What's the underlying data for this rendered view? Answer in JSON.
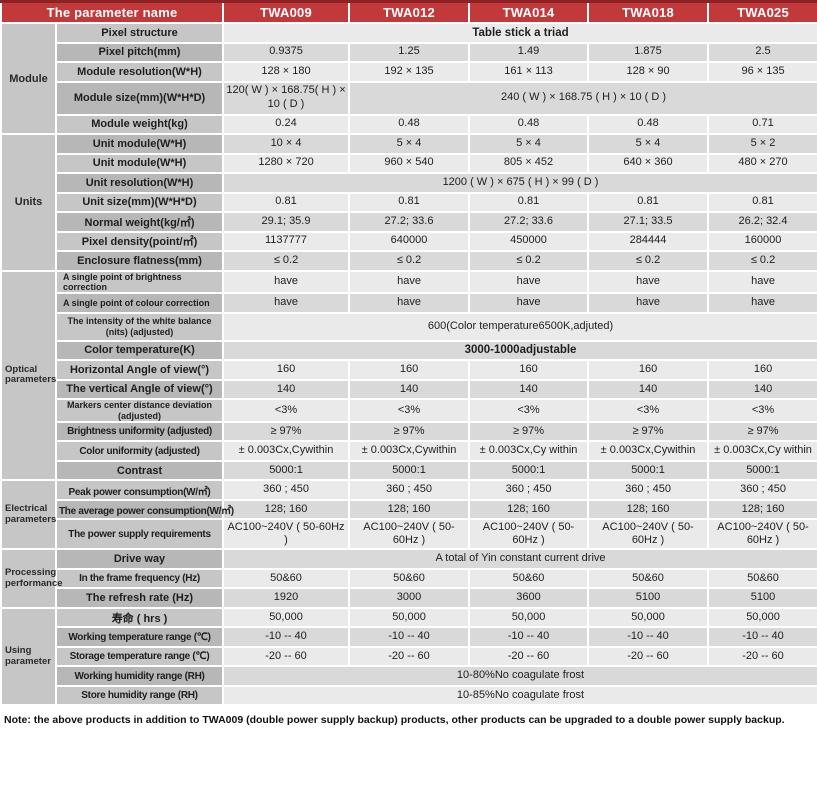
{
  "colors": {
    "header_red": "#c2393c",
    "header_red_dark": "#8d2225"
  },
  "header": {
    "param_col": "The parameter name",
    "models": [
      "TWA009",
      "TWA012",
      "TWA014",
      "TWA018",
      "TWA025"
    ]
  },
  "groups": [
    {
      "label": "Module",
      "rows": 5
    },
    {
      "label": "Units",
      "rows": 7
    },
    {
      "label": "Optical parameters",
      "rows": 10
    },
    {
      "label": "Electrical parameters",
      "rows": 3
    },
    {
      "label": "Processing performance",
      "rows": 3
    },
    {
      "label": "Using parameter",
      "rows": 5
    }
  ],
  "rows": [
    {
      "label": "Pixel structure",
      "bold": true,
      "cells": [
        {
          "text": "Table stick a triad",
          "colspan": 5
        }
      ]
    },
    {
      "label": "Pixel pitch(mm)",
      "cells": [
        {
          "text": "0.9375"
        },
        {
          "text": "1.25"
        },
        {
          "text": "1.49"
        },
        {
          "text": "1.875"
        },
        {
          "text": "2.5"
        }
      ]
    },
    {
      "label": "Module resolution(W*H)",
      "cells": [
        {
          "text": "128 × 180"
        },
        {
          "text": "192 × 135"
        },
        {
          "text": "161 × 113"
        },
        {
          "text": "128 × 90"
        },
        {
          "text": "96 × 135"
        }
      ]
    },
    {
      "label": "Module size(mm)(W*H*D)",
      "h": "h35",
      "cells": [
        {
          "text": "120( W ) × 168.75( H ) × 10 ( D )"
        },
        {
          "text": "240 ( W ) × 168.75 ( H ) × 10 ( D )",
          "colspan": 4
        }
      ]
    },
    {
      "label": "Module weight(kg)",
      "cells": [
        {
          "text": "0.24"
        },
        {
          "text": "0.48"
        },
        {
          "text": "0.48"
        },
        {
          "text": "0.48"
        },
        {
          "text": "0.71"
        }
      ]
    },
    {
      "label": "Unit module(W*H)",
      "cells": [
        {
          "text": "10 × 4"
        },
        {
          "text": "5 × 4"
        },
        {
          "text": "5 × 4"
        },
        {
          "text": "5 × 4"
        },
        {
          "text": "5 × 2"
        }
      ]
    },
    {
      "label": "Unit module(W*H)",
      "cells": [
        {
          "text": "1280 × 720"
        },
        {
          "text": "960 × 540"
        },
        {
          "text": "805 × 452"
        },
        {
          "text": "640 × 360"
        },
        {
          "text": "480 × 270"
        }
      ]
    },
    {
      "label": "Unit resolution(W*H)",
      "cells": [
        {
          "text": "1200 ( W )  × 675 ( H )  × 99 ( D )",
          "colspan": 5
        }
      ]
    },
    {
      "label": "Unit size(mm)(W*H*D)",
      "cells": [
        {
          "text": "0.81"
        },
        {
          "text": "0.81"
        },
        {
          "text": "0.81"
        },
        {
          "text": "0.81"
        },
        {
          "text": "0.81"
        }
      ]
    },
    {
      "label": "Normal weight(kg/㎡)",
      "cells": [
        {
          "text": "29.1; 35.9"
        },
        {
          "text": "27.2; 33.6"
        },
        {
          "text": "27.2; 33.6"
        },
        {
          "text": "27.1; 33.5"
        },
        {
          "text": "26.2; 32.4"
        }
      ]
    },
    {
      "label": "Pixel density(point/㎡)",
      "cells": [
        {
          "text": "1137777"
        },
        {
          "text": "640000"
        },
        {
          "text": "450000"
        },
        {
          "text": "284444"
        },
        {
          "text": "160000"
        }
      ]
    },
    {
      "label": "Enclosure flatness(mm)",
      "cells": [
        {
          "text": "≤ 0.2"
        },
        {
          "text": "≤ 0.2"
        },
        {
          "text": "≤ 0.2"
        },
        {
          "text": "≤ 0.2"
        },
        {
          "text": "≤ 0.2"
        }
      ]
    },
    {
      "label": "A single point of brightness correction",
      "style": "small left",
      "cells": [
        {
          "text": "have"
        },
        {
          "text": "have"
        },
        {
          "text": "have"
        },
        {
          "text": "have"
        },
        {
          "text": "have"
        }
      ]
    },
    {
      "label": "A single point of colour correction",
      "style": "small left",
      "cells": [
        {
          "text": "have"
        },
        {
          "text": "have"
        },
        {
          "text": "have"
        },
        {
          "text": "have"
        },
        {
          "text": "have"
        }
      ]
    },
    {
      "label": "The intensity of the white balance (nits) (adjusted)",
      "style": "small",
      "h": "h30",
      "cells": [
        {
          "text": "600(Color temperature6500K,adjuted)",
          "colspan": 5
        }
      ]
    },
    {
      "label": "Color temperature(K)",
      "bold": true,
      "cells": [
        {
          "text": "3000-1000adjustable",
          "colspan": 5
        }
      ]
    },
    {
      "label": "Horizontal Angle of view(°)",
      "cells": [
        {
          "text": "160"
        },
        {
          "text": "160"
        },
        {
          "text": "160"
        },
        {
          "text": "160"
        },
        {
          "text": "160"
        }
      ]
    },
    {
      "label": "The vertical Angle of view(°)",
      "cells": [
        {
          "text": "140"
        },
        {
          "text": "140"
        },
        {
          "text": "140"
        },
        {
          "text": "140"
        },
        {
          "text": "140"
        }
      ]
    },
    {
      "label": "Markers center distance deviation (adjusted)",
      "style": "small",
      "cells": [
        {
          "text": "<3%"
        },
        {
          "text": "<3%"
        },
        {
          "text": "<3%"
        },
        {
          "text": "<3%"
        },
        {
          "text": "<3%"
        }
      ]
    },
    {
      "label": "Brightness uniformity (adjusted)",
      "style": "xs",
      "cells": [
        {
          "text": "≥ 97%"
        },
        {
          "text": "≥ 97%"
        },
        {
          "text": "≥ 97%"
        },
        {
          "text": "≥ 97%"
        },
        {
          "text": "≥ 97%"
        }
      ]
    },
    {
      "label": "Color uniformity (adjusted)",
      "style": "xs",
      "cells": [
        {
          "text": "± 0.003Cx,Cywithin"
        },
        {
          "text": "± 0.003Cx,Cywithin"
        },
        {
          "text": "± 0.003Cx,Cy within"
        },
        {
          "text": "± 0.003Cx,Cywithin"
        },
        {
          "text": "± 0.003Cx,Cy within"
        }
      ]
    },
    {
      "label": "Contrast",
      "cells": [
        {
          "text": "5000:1"
        },
        {
          "text": "5000:1"
        },
        {
          "text": "5000:1"
        },
        {
          "text": "5000:1"
        },
        {
          "text": "5000:1"
        }
      ]
    },
    {
      "label": "Peak power consumption(W/㎡)",
      "style": "xs",
      "cells": [
        {
          "text": "360 ; 450"
        },
        {
          "text": "360 ; 450"
        },
        {
          "text": "360 ; 450"
        },
        {
          "text": "360 ; 450"
        },
        {
          "text": "360 ; 450"
        }
      ]
    },
    {
      "label": "The average power consumption(W/㎡)",
      "style": "xs",
      "cells": [
        {
          "text": "128; 160"
        },
        {
          "text": "128; 160"
        },
        {
          "text": "128; 160"
        },
        {
          "text": "128; 160"
        },
        {
          "text": "128; 160"
        }
      ]
    },
    {
      "label": "The power supply requirements",
      "style": "xs",
      "h": "h32",
      "cells": [
        {
          "text": "AC100~240V ( 50-60Hz )"
        },
        {
          "text": "AC100~240V ( 50-60Hz )"
        },
        {
          "text": "AC100~240V ( 50-60Hz )"
        },
        {
          "text": "AC100~240V ( 50-60Hz )"
        },
        {
          "text": "AC100~240V ( 50-60Hz )"
        }
      ]
    },
    {
      "label": "Drive way",
      "cells": [
        {
          "text": "A total of Yin constant current drive",
          "colspan": 5
        }
      ]
    },
    {
      "label": "In the frame frequency (Hz)",
      "style": "xs",
      "cells": [
        {
          "text": "50&60"
        },
        {
          "text": "50&60"
        },
        {
          "text": "50&60"
        },
        {
          "text": "50&60"
        },
        {
          "text": "50&60"
        }
      ]
    },
    {
      "label": "The refresh rate (Hz)",
      "cells": [
        {
          "text": "1920"
        },
        {
          "text": "3000"
        },
        {
          "text": "3600"
        },
        {
          "text": "5100"
        },
        {
          "text": "5100"
        }
      ]
    },
    {
      "label": "寿命 ( hrs )",
      "cells": [
        {
          "text": "50,000"
        },
        {
          "text": "50,000"
        },
        {
          "text": "50,000"
        },
        {
          "text": "50,000"
        },
        {
          "text": "50,000"
        }
      ]
    },
    {
      "label": "Working temperature range (℃)",
      "style": "xs",
      "cells": [
        {
          "text": "-10 -- 40"
        },
        {
          "text": "-10 -- 40"
        },
        {
          "text": "-10 -- 40"
        },
        {
          "text": "-10 -- 40"
        },
        {
          "text": "-10 -- 40"
        }
      ]
    },
    {
      "label": "Storage temperature range (℃)",
      "style": "xs",
      "cells": [
        {
          "text": "-20 -- 60"
        },
        {
          "text": "-20 -- 60"
        },
        {
          "text": "-20 -- 60"
        },
        {
          "text": "-20 -- 60"
        },
        {
          "text": "-20 -- 60"
        }
      ]
    },
    {
      "label": "Working humidity range (RH)",
      "style": "xs",
      "cells": [
        {
          "text": "10-80%No coagulate frost",
          "colspan": 5
        }
      ]
    },
    {
      "label": "Store humidity range (RH)",
      "style": "xs",
      "cells": [
        {
          "text": "10-85%No coagulate frost",
          "colspan": 5
        }
      ]
    }
  ],
  "note": "Note: the above products in addition to TWA009 (double power supply backup) products, other products can be upgraded to a double power supply backup."
}
